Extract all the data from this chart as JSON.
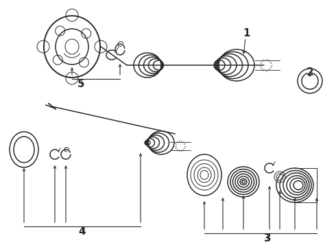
{
  "bg_color": "#ffffff",
  "lc": "#2a2a2a",
  "lw_main": 1.4,
  "lw_med": 1.1,
  "lw_thin": 0.7,
  "figsize": [
    4.9,
    3.6
  ],
  "dpi": 100,
  "xlim": [
    0,
    490
  ],
  "ylim": [
    0,
    360
  ]
}
